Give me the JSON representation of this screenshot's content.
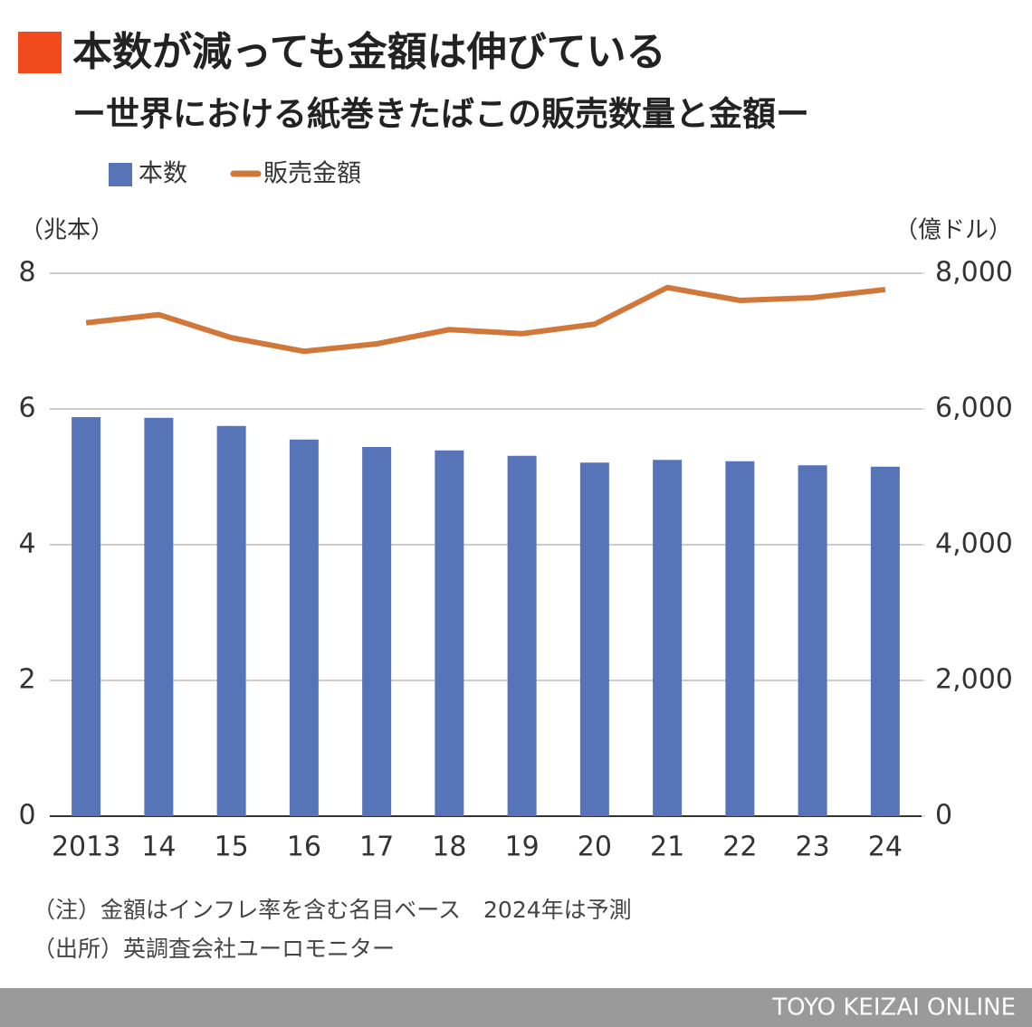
{
  "chart_data": {
    "type": "bar",
    "title": "本数が減っても金額は伸びている",
    "subtitle": "ー世界における紙巻きたばこの販売数量と金額ー",
    "y_label": "（兆本）",
    "y2_label": "（億ドル）",
    "categories": [
      "2013",
      "14",
      "15",
      "16",
      "17",
      "18",
      "19",
      "20",
      "21",
      "22",
      "23",
      "24"
    ],
    "series": [
      {
        "name": "本数",
        "type": "bar",
        "color": "#5874b8",
        "values": [
          5.88,
          5.87,
          5.75,
          5.55,
          5.44,
          5.39,
          5.31,
          5.21,
          5.25,
          5.23,
          5.17,
          5.15
        ]
      },
      {
        "name": "販売金額",
        "type": "line",
        "axis": "y2",
        "color": "#d2773a",
        "values": [
          7270,
          7390,
          7050,
          6850,
          6960,
          7170,
          7110,
          7250,
          7790,
          7600,
          7640,
          7760
        ]
      }
    ],
    "ylim": [
      0,
      8
    ],
    "yticks": [
      0,
      2,
      4,
      6,
      8
    ],
    "y2lim": [
      0,
      8000
    ],
    "y2ticks": [
      0,
      {
        "value": 2000,
        "label": "2,000"
      },
      {
        "value": 4000,
        "label": "4,000"
      },
      {
        "value": 6000,
        "label": "6,000"
      },
      {
        "value": 8000,
        "label": "8,000"
      }
    ],
    "grid": true,
    "notes": [
      "（注）金額はインフレ率を含む名目ベース　2024年は予測",
      "（出所）英調査会社ユーロモニター"
    ],
    "footer": "TOYO KEIZAI ONLINE"
  }
}
